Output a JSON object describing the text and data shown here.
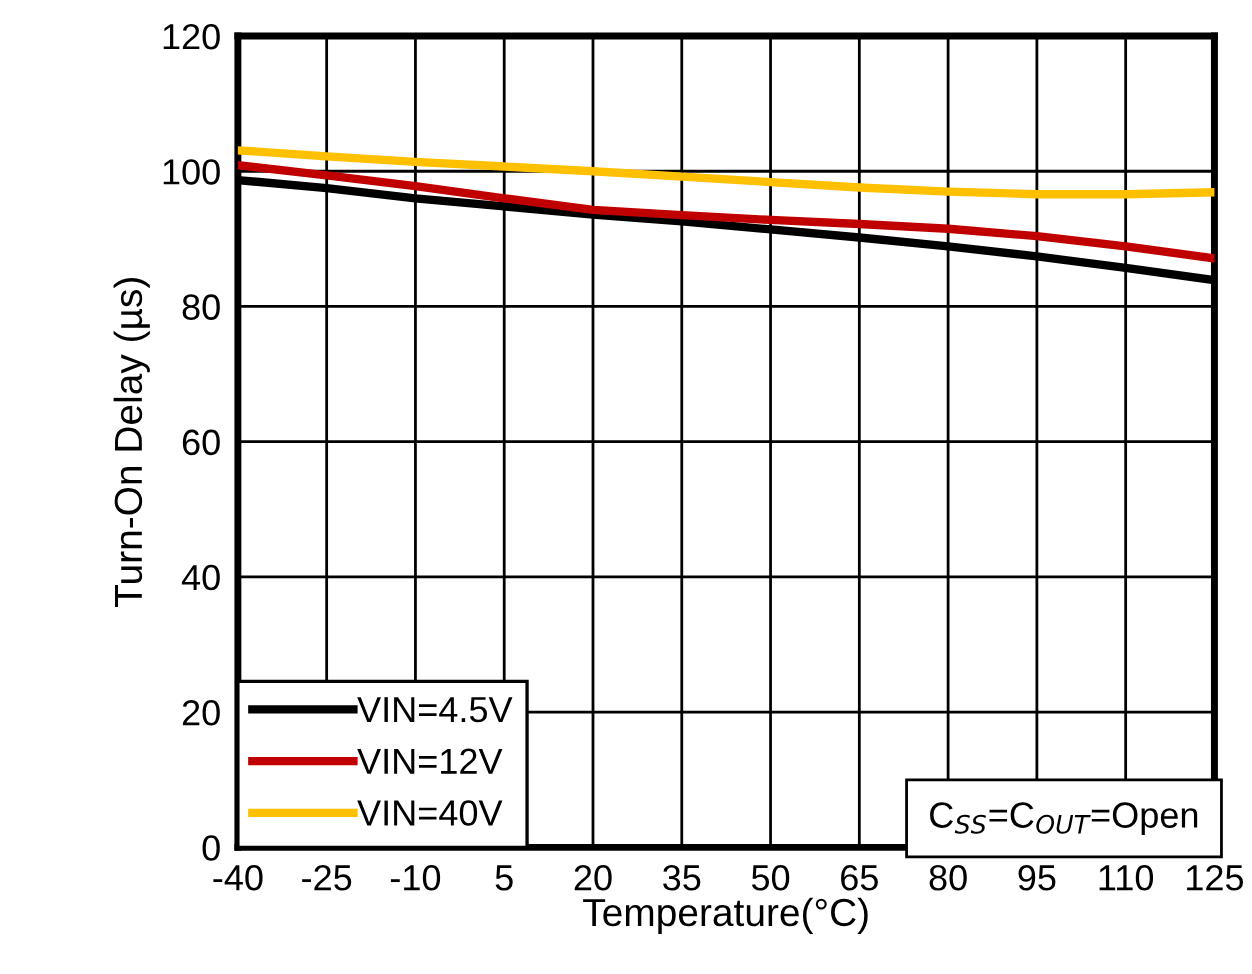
{
  "chart_data": {
    "type": "line",
    "xlabel": "Temperature(°C)",
    "ylabel": "Turn-On Delay (µs)",
    "x": [
      -40,
      -25,
      -10,
      5,
      20,
      35,
      50,
      65,
      80,
      95,
      110,
      125
    ],
    "series": [
      {
        "name": "VIN=4.5V",
        "color": "#000000",
        "values": [
          98.7,
          97.5,
          96.0,
          94.8,
          93.6,
          92.6,
          91.4,
          90.2,
          88.9,
          87.4,
          85.7,
          83.9
        ]
      },
      {
        "name": "VIN=12V",
        "color": "#c00000",
        "values": [
          100.9,
          99.4,
          97.8,
          96.0,
          94.3,
          93.5,
          92.8,
          92.2,
          91.5,
          90.4,
          88.9,
          87.1
        ]
      },
      {
        "name": "VIN=40V",
        "color": "#ffc000",
        "values": [
          103.1,
          102.2,
          101.4,
          100.7,
          100.0,
          99.2,
          98.4,
          97.6,
          97.0,
          96.6,
          96.6,
          96.9
        ]
      }
    ],
    "xlim": [
      -40,
      125
    ],
    "xticks": [
      -40,
      -25,
      -10,
      5,
      20,
      35,
      50,
      65,
      80,
      95,
      110,
      125
    ],
    "ylim": [
      0,
      120
    ],
    "yticks": [
      0,
      20,
      40,
      60,
      80,
      100,
      120
    ],
    "grid": true,
    "legend": "bottom left",
    "marker": "none",
    "line_style": "solid",
    "annotations": [
      "C$_{SS}$=C$_{OUT}$=Open"
    ]
  }
}
